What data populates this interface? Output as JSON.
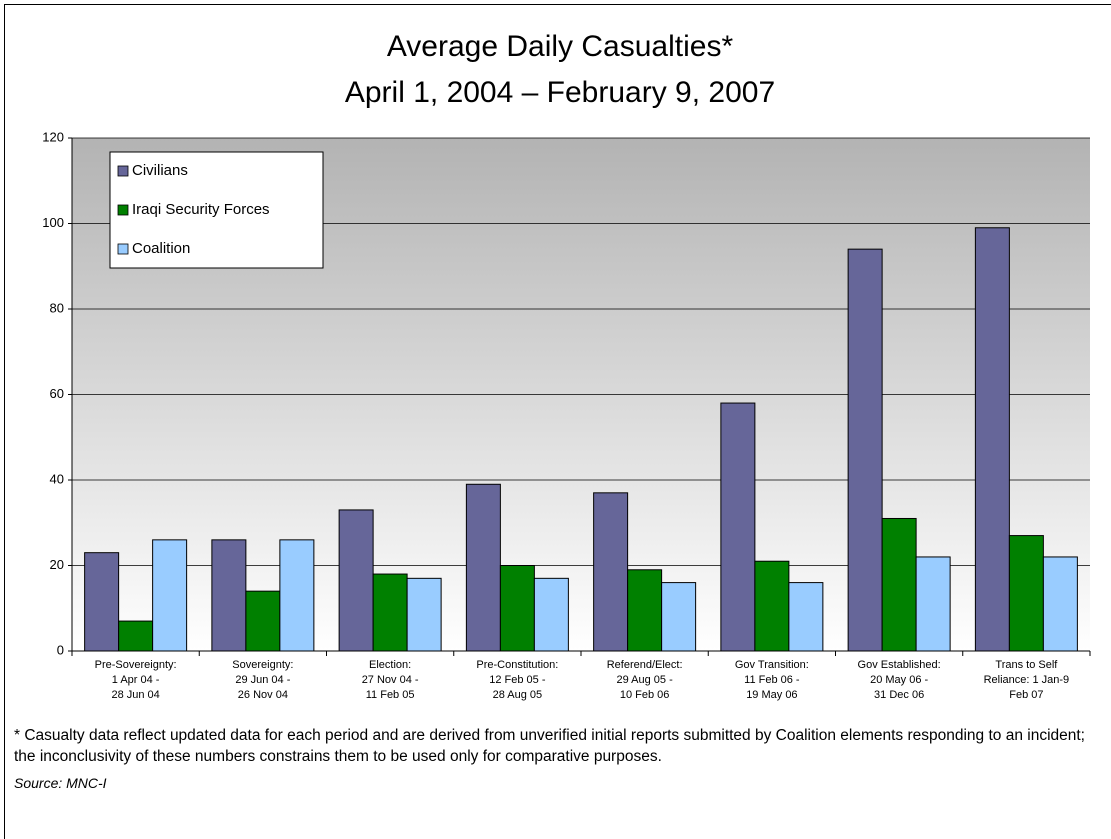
{
  "chart_data": {
    "type": "bar",
    "title": "Average Daily Casualties*",
    "subtitle": "April 1, 2004 – February 9, 2007",
    "categories": [
      "Pre-Sovereignty:\n1 Apr 04 -\n28 Jun 04",
      "Sovereignty:\n29 Jun 04 -\n26 Nov 04",
      "Election:\n27 Nov 04 -\n11 Feb 05",
      "Pre-Constitution:\n12 Feb 05 -\n28 Aug 05",
      "Referend/Elect:\n29 Aug 05 -\n10 Feb 06",
      "Gov Transition:\n11 Feb 06 -\n19 May 06",
      "Gov Established:\n20 May 06 -\n31 Dec 06",
      "Trans to Self\nReliance: 1 Jan-9\nFeb 07"
    ],
    "series": [
      {
        "name": "Civilians",
        "color": "#666699",
        "values": [
          23,
          26,
          33,
          39,
          37,
          58,
          94,
          99
        ]
      },
      {
        "name": "Iraqi Security Forces",
        "color": "#008000",
        "values": [
          7,
          14,
          18,
          20,
          19,
          21,
          31,
          27
        ]
      },
      {
        "name": "Coalition",
        "color": "#99ccff",
        "values": [
          26,
          26,
          17,
          17,
          16,
          16,
          22,
          22
        ]
      }
    ],
    "ylim": [
      0,
      120
    ],
    "yticks": [
      0,
      20,
      40,
      60,
      80,
      100,
      120
    ],
    "grid": true,
    "legend": "upper left",
    "note": "* Casualty data reflect updated data for each period and are derived from unverified initial reports submitted by Coalition elements responding to an incident; the inconclusivity of these numbers constrains them to be used only for comparative purposes.",
    "source": "Source: MNC-I"
  }
}
